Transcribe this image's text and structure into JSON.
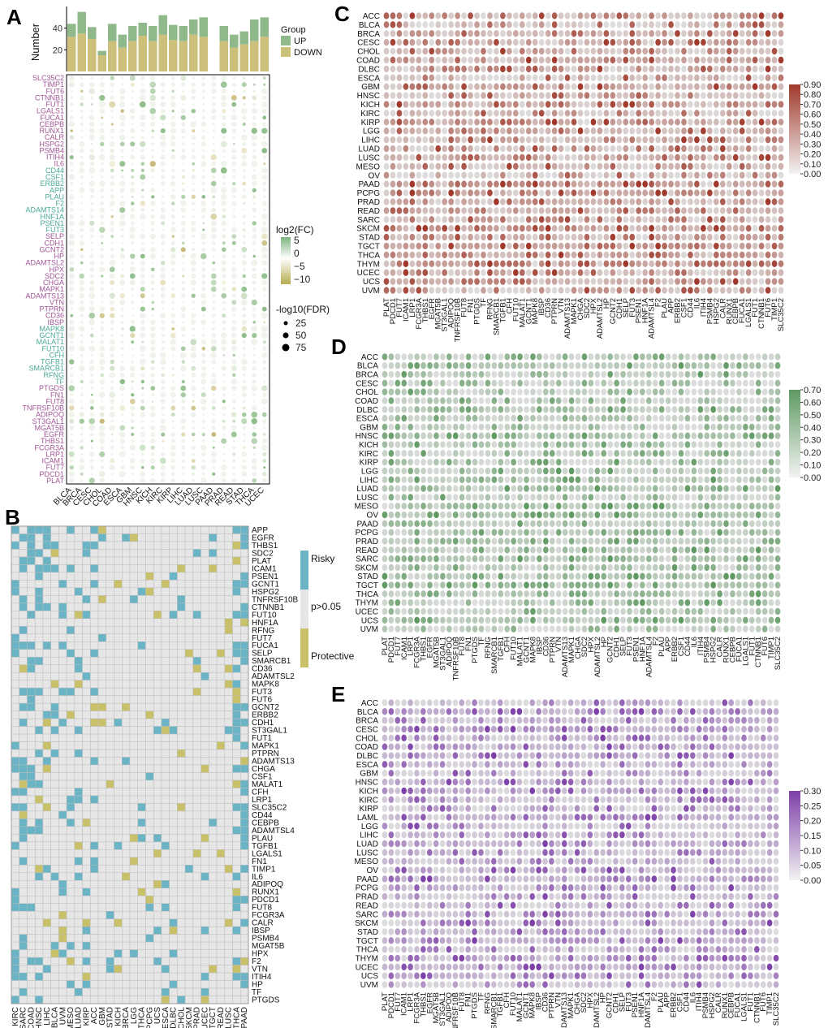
{
  "panels": {
    "A": "A",
    "B": "B",
    "C": "C",
    "D": "D",
    "E": "E"
  },
  "colors": {
    "up": "#8fb98a",
    "down": "#cdc07a",
    "risky": "#6ab4c6",
    "protective": "#c9c169",
    "ns": "#e6e6e6",
    "c_high": "#a0392b",
    "d_high": "#5f9a62",
    "e_high": "#7d3fa8",
    "low": "#dedede"
  },
  "chart_data": [
    {
      "panel": "A-top",
      "type": "bar",
      "title": "",
      "ylabel": "Number",
      "ylim": [
        0,
        60
      ],
      "yticks": [
        "20",
        "40"
      ],
      "categories": [
        "BLCA",
        "BRCA",
        "CESC",
        "CHOL",
        "COAD",
        "ESCA",
        "GBM",
        "HNSC",
        "KICH",
        "KIRC",
        "KIRP",
        "LIHC",
        "LUAD",
        "LUSC",
        "PAAD",
        "PRAD",
        "READ",
        "STAD",
        "THCA",
        "UCEC"
      ],
      "series": [
        {
          "name": "UP",
          "values": [
            12,
            20,
            11,
            4,
            16,
            12,
            14,
            12,
            14,
            18,
            14,
            14,
            14,
            18,
            0,
            14,
            12,
            12,
            20,
            18
          ]
        },
        {
          "name": "DOWN",
          "values": [
            32,
            35,
            30,
            15,
            28,
            22,
            28,
            33,
            28,
            34,
            29,
            28,
            34,
            32,
            0,
            28,
            22,
            25,
            28,
            32
          ]
        }
      ],
      "legend": {
        "title": "Group",
        "items": [
          "UP",
          "DOWN"
        ]
      }
    },
    {
      "panel": "A",
      "type": "scatter",
      "title": "",
      "xcategories": [
        "BLCA",
        "BRCA",
        "CESC",
        "CHOL",
        "COAD",
        "ESCA",
        "GBM",
        "HNSC",
        "KICH",
        "KIRC",
        "KIRP",
        "LIHC",
        "LUAD",
        "LUSC",
        "PAAD",
        "PRAD",
        "READ",
        "STAD",
        "THCA",
        "UCEC"
      ],
      "ycategories": [
        "SLC35C2",
        "TIMP1",
        "FUT6",
        "CTNNB1",
        "FUT1",
        "LGALS1",
        "FUCA1",
        "CEBPB",
        "RUNX1",
        "CALR",
        "HSPG2",
        "PSMB4",
        "ITIH4",
        "IL6",
        "CD44",
        "CSF1",
        "ERBB2",
        "APP",
        "PLAU",
        "F2",
        "ADAMTS14",
        "HNF1A",
        "PSEN1",
        "FUT3",
        "SELP",
        "CDH1",
        "GCNT2",
        "HP",
        "ADAMTSL2",
        "HPX",
        "SDC2",
        "CHGA",
        "MAPK1",
        "ADAMTS13",
        "VTN",
        "PTPRN",
        "CD36",
        "IBSP",
        "MAPK8",
        "GCNT1",
        "MALAT1",
        "FUT10",
        "CFH",
        "TGFB1",
        "SMARCB1",
        "RFNG",
        "TF",
        "PTGDS",
        "FN1",
        "FUT8",
        "TNFRSF10B",
        "ADIPOQ",
        "ST3GAL1",
        "MGAT5B",
        "EGFR",
        "THBS1",
        "FCGR3A",
        "LRP1",
        "ICAM1",
        "FUT7",
        "PDCD1",
        "PLAT"
      ],
      "ylabel_colors": [
        "#a25597",
        "#a25597",
        "#a25597",
        "#a25597",
        "#a25597",
        "#a25597",
        "#a25597",
        "#a25597",
        "#a25597",
        "#a25597",
        "#a25597",
        "#a25597",
        "#a25597",
        "#a25597",
        "#49a996",
        "#49a996",
        "#49a996",
        "#49a996",
        "#49a996",
        "#49a996",
        "#49a996",
        "#49a996",
        "#49a996",
        "#49a996",
        "#a25597",
        "#a25597",
        "#a25597",
        "#a25597",
        "#a25597",
        "#a25597",
        "#a25597",
        "#a25597",
        "#a25597",
        "#a25597",
        "#a25597",
        "#a25597",
        "#a25597",
        "#a25597",
        "#49a996",
        "#49a996",
        "#49a996",
        "#49a996",
        "#49a996",
        "#49a996",
        "#49a996",
        "#49a996",
        "#49a996",
        "#a25597",
        "#a25597",
        "#a25597",
        "#a25597",
        "#a25597",
        "#a25597",
        "#a25597",
        "#a25597",
        "#a25597",
        "#a25597",
        "#a25597",
        "#a25597",
        "#a25597",
        "#a25597",
        "#a25597"
      ],
      "color_legend": {
        "title": "log2(FC)",
        "ticks": [
          "5",
          "0",
          "−5",
          "−10"
        ]
      },
      "size_legend": {
        "title": "-log10(FDR)",
        "ticks": [
          "25",
          "50",
          "75"
        ]
      }
    },
    {
      "panel": "B",
      "type": "heatmap",
      "title": "",
      "xcategories": [
        "KIRC",
        "SARC",
        "COAD",
        "HNSC",
        "LIHC",
        "BLCA",
        "UVM",
        "MESO",
        "LUAD",
        "KIRP",
        "ACC",
        "GBM",
        "STAD",
        "KICH",
        "BRCA",
        "LGG",
        "THCA",
        "PCPG",
        "UCS",
        "ESCA",
        "DLBC",
        "CHOL",
        "SKCM",
        "PRAD",
        "UCEC",
        "TGCT",
        "READ",
        "LUSC",
        "THCA",
        "PAAD"
      ],
      "ycategories": [
        "APP",
        "EGFR",
        "THBS1",
        "SDC2",
        "PLAT",
        "ICAM1",
        "PSEN1",
        "GCNT1",
        "HSPG2",
        "TNFRSF10B",
        "CTNNB1",
        "FUT10",
        "HNF1A",
        "RFNG",
        "FUT7",
        "FUCA1",
        "SELP",
        "SMARCB1",
        "CD36",
        "ADAMTSL2",
        "MAPK8",
        "FUT3",
        "FUT6",
        "GCNT2",
        "ERBB2",
        "CDH1",
        "ST3GAL1",
        "FUT1",
        "MAPK1",
        "PTPRN",
        "ADAMTS13",
        "CHGA",
        "CSF1",
        "MALAT1",
        "CFH",
        "LRP1",
        "SLC35C2",
        "CD44",
        "CEBPB",
        "ADAMTSL4",
        "PLAU",
        "TGFB1",
        "LGALS1",
        "FN1",
        "TIMP1",
        "IL6",
        "ADIPOQ",
        "RUNX1",
        "PDCD1",
        "FUT8",
        "FCGR3A",
        "CALR",
        "IBSP",
        "PSMB4",
        "MGAT5B",
        "HPX",
        "F2",
        "VTN",
        "ITIH4",
        "HP",
        "TF",
        "PTGDS"
      ],
      "legend": {
        "items": [
          "Risky",
          "p>0.05",
          "Protective"
        ]
      }
    },
    {
      "panel": "C",
      "type": "scatter",
      "title": "",
      "ycategories": [
        "ACC",
        "BLCA",
        "BRCA",
        "CESC",
        "CHOL",
        "COAD",
        "DLBC",
        "ESCA",
        "GBM",
        "HNSC",
        "KICH",
        "KIRC",
        "KIRP",
        "LGG",
        "LIHC",
        "LUAD",
        "LUSC",
        "MESO",
        "OV",
        "PAAD",
        "PCPG",
        "PRAD",
        "READ",
        "SARC",
        "SKCM",
        "STAD",
        "TGCT",
        "THCA",
        "THYM",
        "UCEC",
        "UCS",
        "UVM"
      ],
      "xcategories": [
        "PLAT",
        "PDCD1",
        "FUT7",
        "ICAM1",
        "LRP1",
        "FCGR3A",
        "THBS1",
        "EGFR",
        "MGAT5B",
        "ST3GAL1",
        "ADIPOQ",
        "TNFRSF10B",
        "FUT8",
        "FN1",
        "PTGDS",
        "TF",
        "RFNG",
        "SMARCB1",
        "TGFB1",
        "CFH",
        "FUT10",
        "MALAT1",
        "GCNT1",
        "MAPK8",
        "IBSP",
        "CD36",
        "PTPRN",
        "VTN",
        "ADAMTS13",
        "MAPK1",
        "CHGA",
        "SDC2",
        "HPX",
        "ADAMTSL2",
        "HP",
        "GCNT2",
        "CDH1",
        "SELP",
        "FUT3",
        "PSEN1",
        "HNF1A",
        "ADAMTSL4",
        "F2",
        "PLAU",
        "APP",
        "ERBB2",
        "CSF1",
        "CD44",
        "IL6",
        "ITIH4",
        "PSMB4",
        "HSPG2",
        "CALR",
        "RUNX1",
        "CEBPB",
        "FUCA1",
        "LGALS1",
        "FUT1",
        "CTNNB1",
        "FUT6",
        "TIMP1",
        "SLC35C2"
      ],
      "colorbar": {
        "ticks": [
          "0.90",
          "0.80",
          "0.70",
          "0.60",
          "0.50",
          "0.40",
          "0.30",
          "0.20",
          "0.10",
          "0.00"
        ],
        "range": [
          0,
          0.9
        ]
      }
    },
    {
      "panel": "D",
      "type": "scatter",
      "title": "",
      "ycategories": [
        "ACC",
        "BLCA",
        "BRCA",
        "CESC",
        "CHOL",
        "COAD",
        "DLBC",
        "ESCA",
        "GBM",
        "HNSC",
        "KICH",
        "KIRC",
        "KIRP",
        "LGG",
        "LIHC",
        "LUAD",
        "LUSC",
        "MESO",
        "OV",
        "PAAD",
        "PCPG",
        "PRAD",
        "READ",
        "SARC",
        "SKCM",
        "STAD",
        "TGCT",
        "THCA",
        "THYM",
        "UCEC",
        "UCS",
        "UVM"
      ],
      "xcategories": [
        "PLAT",
        "PDCD1",
        "FUT7",
        "ICAM1",
        "LRP1",
        "FCGR3A",
        "THBS1",
        "EGFR",
        "MGAT5B",
        "ST3GAL1",
        "ADIPOQ",
        "TNFRSF10B",
        "FUT8",
        "FN1",
        "PTGDS",
        "TF",
        "RFNG",
        "SMARCB1",
        "TGFB1",
        "CFH",
        "FUT10",
        "MALAT1",
        "GCNT1",
        "MAPK8",
        "IBSP",
        "CD36",
        "PTPRN",
        "VTN",
        "ADAMTS13",
        "MAPK1",
        "CHGA",
        "SDC2",
        "HPX",
        "ADAMTSL2",
        "HP",
        "GCNT2",
        "CDH1",
        "SELP",
        "FUT3",
        "PSEN1",
        "HNF1A",
        "ADAMTSL4",
        "F2",
        "PLAU",
        "APP",
        "ERBB2",
        "CSF1",
        "CD44",
        "IL6",
        "ITIH4",
        "PSMB4",
        "HSPG2",
        "CALR",
        "RUNX1",
        "CEBPB",
        "FUCA1",
        "LGALS1",
        "FUT1",
        "CTNNB1",
        "FUT6",
        "TIMP1",
        "SLC35C2"
      ],
      "colorbar": {
        "ticks": [
          "0.70",
          "0.60",
          "0.50",
          "0.40",
          "0.30",
          "0.20",
          "0.10",
          "0.00"
        ],
        "range": [
          0,
          0.7
        ]
      }
    },
    {
      "panel": "E",
      "type": "scatter",
      "title": "",
      "ycategories": [
        "ACC",
        "BLCA",
        "BRCA",
        "CESC",
        "CHOL",
        "COAD",
        "DLBC",
        "ESCA",
        "GBM",
        "HNSC",
        "KICH",
        "KIRC",
        "KIRP",
        "LAML",
        "LGG",
        "LIHC",
        "LUAD",
        "LUSC",
        "MESO",
        "OV",
        "PAAD",
        "PCPG",
        "PRAD",
        "READ",
        "SARC",
        "SKCM",
        "STAD",
        "TGCT",
        "THCA",
        "THYM",
        "UCEC",
        "UCS",
        "UVM"
      ],
      "xcategories": [
        "PLAT",
        "PDCD1",
        "FUT7",
        "ICAM1",
        "LRP1",
        "FCGR3A",
        "THBS1",
        "EGFR",
        "MGAT5B",
        "ST3GAL1",
        "ADIPOQ",
        "TNFRSF10B",
        "FUT8",
        "FN1",
        "PTGDS",
        "TF",
        "RFNG",
        "SMARCB1",
        "TGFB1",
        "CFH",
        "FUT10",
        "MALAT1",
        "GCNT1",
        "MAPK8",
        "IBSP",
        "CD36",
        "PTPRN",
        "VTN",
        "ADAMTS13",
        "MAPK1",
        "CHGA",
        "SDC2",
        "HPX",
        "ADAMTSL2",
        "HP",
        "GCNT2",
        "CDH1",
        "SELP",
        "FUT3",
        "PSEN1",
        "HNF1A",
        "ADAMTSL4",
        "F2",
        "PLAU",
        "APP",
        "ERBB2",
        "CSF1",
        "CD44",
        "IL6",
        "ITIH4",
        "PSMB4",
        "HSPG2",
        "CALR",
        "RUNX1",
        "CEBPB",
        "FUCA1",
        "LGALS1",
        "FUT1",
        "CTNNB1",
        "FUT6",
        "TIMP1",
        "SLC35C2"
      ],
      "colorbar": {
        "ticks": [
          "0.30",
          "0.25",
          "0.20",
          "0.15",
          "0.10",
          "0.05",
          "0.00"
        ],
        "range": [
          0,
          0.3
        ]
      }
    }
  ]
}
